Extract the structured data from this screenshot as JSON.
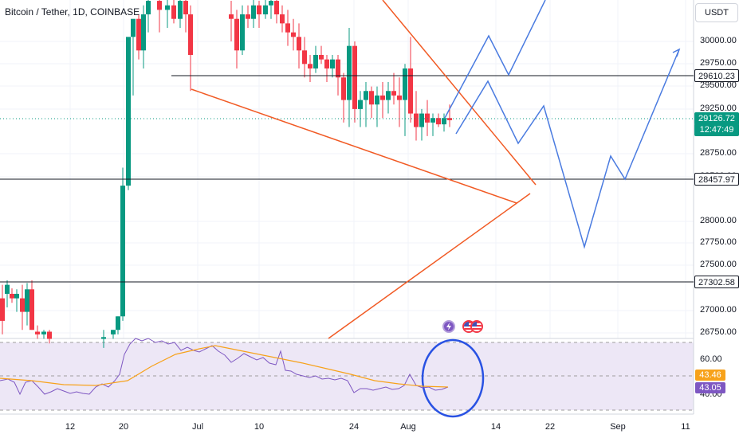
{
  "symbol_title": "Bitcoin / Tether, 1D, COINBASE",
  "currency_button": "USDT",
  "price_axis": {
    "ticks": [
      "30000.00",
      "29750.00",
      "29500.00",
      "29250.00",
      "28750.00",
      "28500.00",
      "28000.00",
      "27750.00",
      "27500.00",
      "27000.00",
      "26750.00"
    ]
  },
  "price_labels": {
    "resistance": "29610.23",
    "current_price": "29126.72",
    "countdown": "12:47:49",
    "support_mid": "28457.97",
    "support_low": "27302.58"
  },
  "time_axis": [
    "12",
    "20",
    "Jul",
    "10",
    "24",
    "Aug",
    "14",
    "22",
    "Sep",
    "11"
  ],
  "rsi": {
    "ticks": [
      "60.00",
      "40.00"
    ],
    "ma_value": "43.46",
    "rsi_value": "43.05",
    "ma_color": "#f7a21b",
    "rsi_color": "#7e57c2"
  },
  "colors": {
    "up": "#089981",
    "down": "#f23645",
    "projection": "#4a7be0",
    "trendline": "#f15a24",
    "hline": "#131722",
    "rsi_band": "#ede7f6"
  },
  "events": [
    "lightning-icon",
    "us-flag-icon"
  ]
}
